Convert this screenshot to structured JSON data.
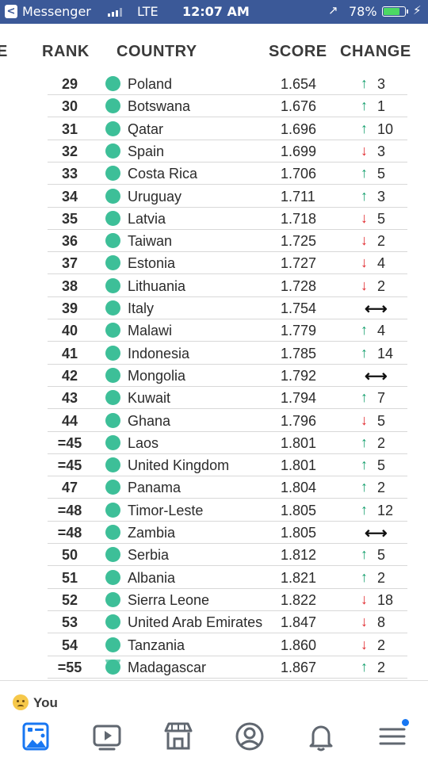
{
  "status_bar": {
    "back_glyph": "<",
    "app": "Messenger",
    "network": "LTE",
    "time": "12:07 AM",
    "location_glyph": "↗",
    "battery": "78%",
    "battery_level": 0.78,
    "charge_glyph": "⚡"
  },
  "table": {
    "headers": {
      "edge": "E",
      "rank": "RANK",
      "country": "COUNTRY",
      "score": "SCORE",
      "change": "CHANGE"
    },
    "rows": [
      {
        "rank": "29",
        "country": "Poland",
        "score": "1.654",
        "direction": "up",
        "change": "3"
      },
      {
        "rank": "30",
        "country": "Botswana",
        "score": "1.676",
        "direction": "up",
        "change": "1"
      },
      {
        "rank": "31",
        "country": "Qatar",
        "score": "1.696",
        "direction": "up",
        "change": "10"
      },
      {
        "rank": "32",
        "country": "Spain",
        "score": "1.699",
        "direction": "down",
        "change": "3"
      },
      {
        "rank": "33",
        "country": "Costa Rica",
        "score": "1.706",
        "direction": "up",
        "change": "5"
      },
      {
        "rank": "34",
        "country": "Uruguay",
        "score": "1.711",
        "direction": "up",
        "change": "3"
      },
      {
        "rank": "35",
        "country": "Latvia",
        "score": "1.718",
        "direction": "down",
        "change": "5"
      },
      {
        "rank": "36",
        "country": "Taiwan",
        "score": "1.725",
        "direction": "down",
        "change": "2"
      },
      {
        "rank": "37",
        "country": "Estonia",
        "score": "1.727",
        "direction": "down",
        "change": "4"
      },
      {
        "rank": "38",
        "country": "Lithuania",
        "score": "1.728",
        "direction": "down",
        "change": "2"
      },
      {
        "rank": "39",
        "country": "Italy",
        "score": "1.754",
        "direction": "same",
        "change": ""
      },
      {
        "rank": "40",
        "country": "Malawi",
        "score": "1.779",
        "direction": "up",
        "change": "4"
      },
      {
        "rank": "41",
        "country": "Indonesia",
        "score": "1.785",
        "direction": "up",
        "change": "14"
      },
      {
        "rank": "42",
        "country": "Mongolia",
        "score": "1.792",
        "direction": "same",
        "change": ""
      },
      {
        "rank": "43",
        "country": "Kuwait",
        "score": "1.794",
        "direction": "up",
        "change": "7"
      },
      {
        "rank": "44",
        "country": "Ghana",
        "score": "1.796",
        "direction": "down",
        "change": "5"
      },
      {
        "rank": "=45",
        "country": "Laos",
        "score": "1.801",
        "direction": "up",
        "change": "2"
      },
      {
        "rank": "=45",
        "country": "United Kingdom",
        "score": "1.801",
        "direction": "up",
        "change": "5"
      },
      {
        "rank": "47",
        "country": "Panama",
        "score": "1.804",
        "direction": "up",
        "change": "2"
      },
      {
        "rank": "=48",
        "country": "Timor-Leste",
        "score": "1.805",
        "direction": "up",
        "change": "12"
      },
      {
        "rank": "=48",
        "country": "Zambia",
        "score": "1.805",
        "direction": "same",
        "change": ""
      },
      {
        "rank": "50",
        "country": "Serbia",
        "score": "1.812",
        "direction": "up",
        "change": "5"
      },
      {
        "rank": "51",
        "country": "Albania",
        "score": "1.821",
        "direction": "up",
        "change": "2"
      },
      {
        "rank": "52",
        "country": "Sierra Leone",
        "score": "1.822",
        "direction": "down",
        "change": "18"
      },
      {
        "rank": "53",
        "country": "United Arab Emirates",
        "score": "1.847",
        "direction": "down",
        "change": "8"
      },
      {
        "rank": "54",
        "country": "Tanzania",
        "score": "1.860",
        "direction": "down",
        "change": "2"
      },
      {
        "rank": "=55",
        "country": "Madagascar",
        "score": "1.867",
        "direction": "up",
        "change": "2"
      }
    ],
    "arrow_glyphs": {
      "up": "↑",
      "down": "↓",
      "same": "⟷"
    },
    "colors": {
      "up": "#16a06e",
      "down": "#e0262b",
      "dot": "#3dbf98"
    }
  },
  "comment_preview": {
    "text": "You"
  },
  "tab_bar": {
    "icons": [
      "news-feed-icon",
      "watch-icon",
      "marketplace-icon",
      "profile-icon",
      "notifications-icon",
      "menu-icon"
    ],
    "accent": "#1877f2"
  }
}
